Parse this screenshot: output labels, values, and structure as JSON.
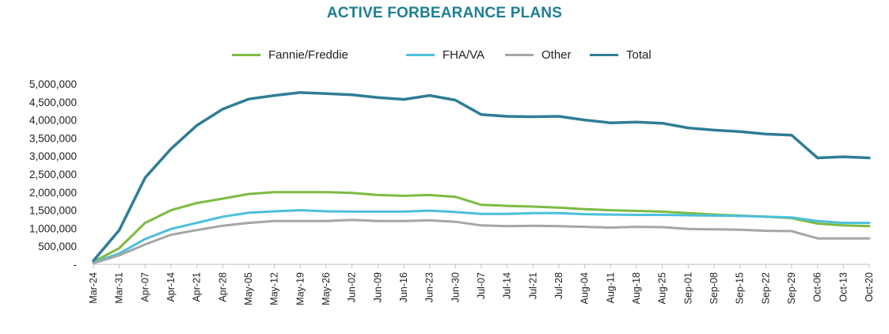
{
  "chart_data": {
    "type": "line",
    "title": "ACTIVE FORBEARANCE PLANS",
    "xlabel": "",
    "ylabel": "",
    "ylim": [
      0,
      5000000
    ],
    "yticks": [
      0,
      500000,
      1000000,
      1500000,
      2000000,
      2500000,
      3000000,
      3500000,
      4000000,
      4500000,
      5000000
    ],
    "ytick_labels": [
      "-",
      "500,000",
      "1,000,000",
      "1,500,000",
      "2,000,000",
      "2,500,000",
      "3,000,000",
      "3,500,000",
      "4,000,000",
      "4,500,000",
      "5,000,000"
    ],
    "x": [
      "Mar-24",
      "Mar-31",
      "Apr-07",
      "Apr-14",
      "Apr-21",
      "Apr-28",
      "May-05",
      "May-12",
      "May-19",
      "May-26",
      "Jun-02",
      "Jun-09",
      "Jun-16",
      "Jun-23",
      "Jun-30",
      "Jul-07",
      "Jul-14",
      "Jul-21",
      "Jul-28",
      "Aug-04",
      "Aug-11",
      "Aug-18",
      "Aug-25",
      "Sep-01",
      "Sep-08",
      "Sep-15",
      "Sep-22",
      "Sep-29",
      "Oct-06",
      "Oct-13",
      "Oct-20"
    ],
    "legend_position": "top",
    "grid": false,
    "series": [
      {
        "name": "Fannie/Freddie",
        "color": "#7dbb42",
        "values": [
          70000,
          450000,
          1150000,
          1500000,
          1700000,
          1820000,
          1950000,
          2000000,
          2000000,
          2000000,
          1980000,
          1920000,
          1900000,
          1920000,
          1870000,
          1650000,
          1620000,
          1600000,
          1570000,
          1530000,
          1500000,
          1480000,
          1460000,
          1420000,
          1380000,
          1350000,
          1320000,
          1280000,
          1130000,
          1080000,
          1060000
        ]
      },
      {
        "name": "FHA/VA",
        "color": "#4bbfdc",
        "values": [
          50000,
          300000,
          700000,
          980000,
          1150000,
          1320000,
          1430000,
          1470000,
          1500000,
          1470000,
          1460000,
          1460000,
          1460000,
          1490000,
          1450000,
          1400000,
          1400000,
          1420000,
          1420000,
          1390000,
          1380000,
          1370000,
          1370000,
          1360000,
          1350000,
          1340000,
          1320000,
          1300000,
          1200000,
          1150000,
          1150000
        ]
      },
      {
        "name": "Other",
        "color": "#a6a6a6",
        "values": [
          30000,
          250000,
          550000,
          820000,
          950000,
          1070000,
          1150000,
          1200000,
          1200000,
          1200000,
          1230000,
          1200000,
          1200000,
          1220000,
          1180000,
          1080000,
          1060000,
          1070000,
          1060000,
          1040000,
          1020000,
          1040000,
          1030000,
          980000,
          970000,
          960000,
          930000,
          920000,
          720000,
          720000,
          720000
        ]
      },
      {
        "name": "Total",
        "color": "#2f7d96",
        "values": [
          100000,
          950000,
          2400000,
          3200000,
          3850000,
          4300000,
          4580000,
          4680000,
          4760000,
          4730000,
          4700000,
          4620000,
          4570000,
          4680000,
          4550000,
          4150000,
          4100000,
          4090000,
          4100000,
          4000000,
          3920000,
          3940000,
          3910000,
          3780000,
          3720000,
          3680000,
          3610000,
          3580000,
          2950000,
          2980000,
          2950000
        ]
      }
    ]
  }
}
